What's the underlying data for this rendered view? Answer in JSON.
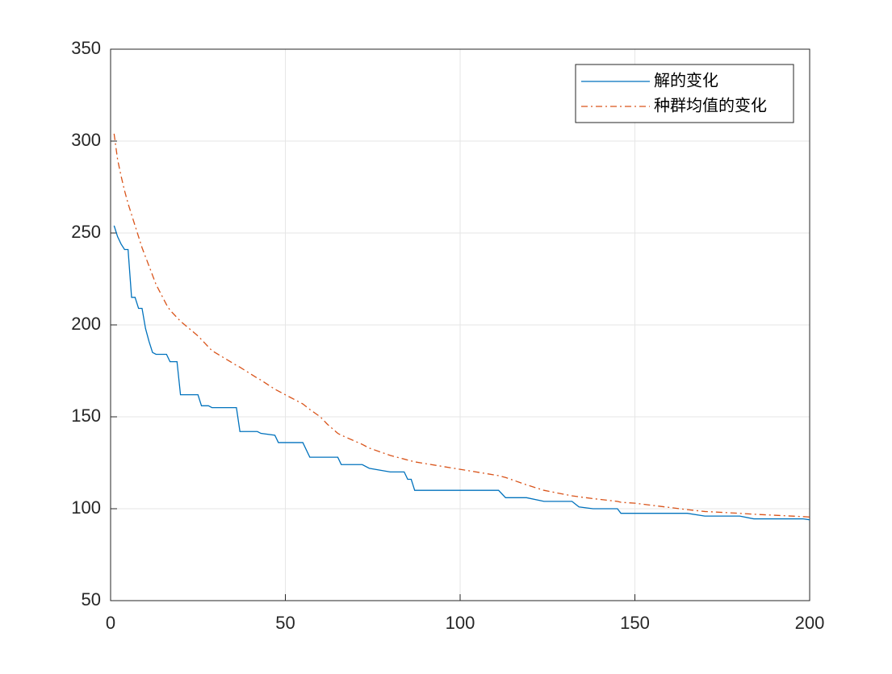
{
  "chart_data": {
    "type": "line",
    "x": [
      1,
      2,
      3,
      4,
      5,
      6,
      7,
      8,
      9,
      10,
      11,
      12,
      13,
      16,
      17,
      19,
      20,
      25,
      26,
      28,
      29,
      36,
      37,
      42,
      43,
      47,
      48,
      55,
      57,
      60,
      62,
      65,
      66,
      72,
      74,
      80,
      84,
      85,
      86,
      87,
      111,
      112,
      113,
      119,
      124,
      132,
      134,
      138,
      145,
      146,
      150,
      165,
      170,
      180,
      184,
      198,
      200
    ],
    "series": [
      {
        "name": "解的变化",
        "color": "#0072bd",
        "dash": "solid",
        "values": [
          254,
          248,
          244,
          241,
          241,
          215,
          215,
          209,
          209,
          198,
          191,
          185,
          184,
          184,
          180,
          180,
          162,
          162,
          156,
          156,
          155,
          155,
          142,
          142,
          141,
          140,
          136,
          136,
          128,
          128,
          128,
          128,
          124,
          124,
          122,
          120,
          120,
          116,
          116,
          110,
          110,
          108,
          106,
          106,
          104,
          104,
          101,
          100,
          100,
          97.5,
          97.5,
          97.5,
          96,
          96,
          94.5,
          94.5,
          94
        ]
      },
      {
        "name": "种群均值的变化",
        "color": "#d95319",
        "dash": "dashdot",
        "values": [
          304,
          290,
          281,
          273,
          266,
          260,
          254,
          248,
          242,
          237,
          232,
          227,
          222,
          211,
          208,
          204,
          202,
          194,
          192,
          188,
          186,
          178,
          177,
          171,
          170,
          165,
          164,
          157,
          154,
          150,
          146,
          141,
          140,
          135,
          133,
          129,
          127,
          126.5,
          126,
          125.5,
          118,
          117.5,
          117,
          113,
          110,
          107,
          106.5,
          105.5,
          104,
          103.5,
          103,
          99.5,
          98.5,
          97.5,
          97,
          95.7,
          95.5
        ]
      }
    ],
    "xlim": [
      0,
      200
    ],
    "xticks": [
      0,
      50,
      100,
      150,
      200
    ],
    "ylim": [
      50,
      350
    ],
    "yticks": [
      50,
      100,
      150,
      200,
      250,
      300,
      350
    ],
    "grid": true,
    "legend": "northeast"
  }
}
